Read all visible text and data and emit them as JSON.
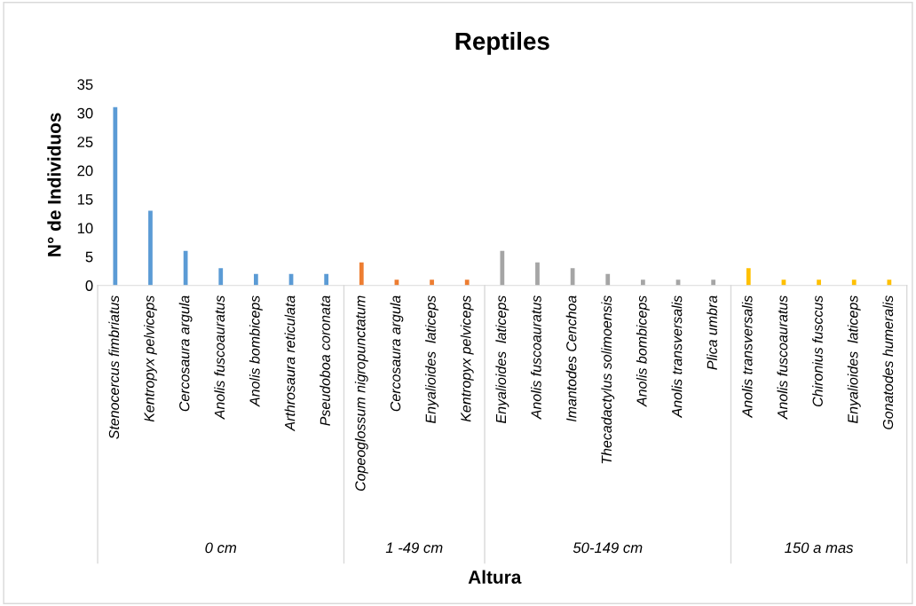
{
  "chart_data": {
    "type": "bar",
    "title": "Reptiles",
    "xlabel": "Altura",
    "ylabel": "N° de Individuos",
    "categories": [
      "Stenocercus fimbriatus",
      "Kentropyx pelviceps",
      "Cercosaura argula",
      "Anolis fuscoauratus",
      "Anolis bombiceps",
      "Arthrosaura reticulata",
      "Pseudoboa coronata",
      "Copeoglossum nigropunctatum",
      "Cercosaura argula",
      "Enyalioides  laticeps",
      "Kentropyx pelviceps",
      "Enyalioides  laticeps",
      "Anolis fuscoauratus",
      "Imantodes Cenchoa",
      "Thecadactylus solimoensis",
      "Anolis bombiceps",
      "Anolis transversalis",
      "Plica umbra",
      "Anolis transversalis",
      "Anolis fuscoauratus",
      "Chironius fusccus",
      "Enyalioides  laticeps",
      "Gonatodes humeralis"
    ],
    "series": [
      {
        "color": "#5b9bd5",
        "values": [
          31,
          13,
          6,
          3,
          2,
          2,
          2,
          null,
          null,
          null,
          null,
          null,
          null,
          null,
          null,
          null,
          null,
          null,
          null,
          null,
          null,
          null,
          null
        ]
      },
      {
        "color": "#ed7d31",
        "values": [
          null,
          null,
          null,
          null,
          null,
          null,
          null,
          4,
          1,
          1,
          1,
          null,
          null,
          null,
          null,
          null,
          null,
          null,
          null,
          null,
          null,
          null,
          null
        ]
      },
      {
        "color": "#a5a5a5",
        "values": [
          null,
          null,
          null,
          null,
          null,
          null,
          null,
          null,
          null,
          null,
          null,
          6,
          4,
          3,
          2,
          1,
          1,
          1,
          null,
          null,
          null,
          null,
          null
        ]
      },
      {
        "color": "#ffc000",
        "values": [
          null,
          null,
          null,
          null,
          null,
          null,
          null,
          null,
          null,
          null,
          null,
          null,
          null,
          null,
          null,
          null,
          null,
          null,
          3,
          1,
          1,
          1,
          1
        ]
      }
    ],
    "annotations": [
      "0 cm",
      "1 -49 cm",
      "50-149 cm",
      "150 a mas"
    ],
    "ylim": [
      0,
      35
    ],
    "yticks": [
      0,
      5,
      10,
      15,
      20,
      25,
      30,
      35
    ],
    "grid": false,
    "legend": false
  }
}
